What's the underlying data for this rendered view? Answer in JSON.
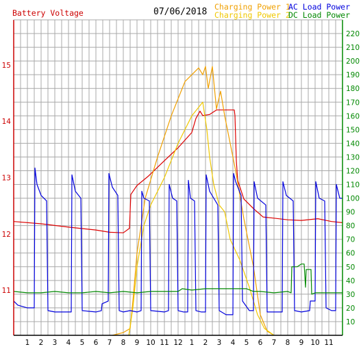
{
  "header": {
    "left_title": "Battery Voltage",
    "date": "07/06/2018",
    "legend": [
      {
        "label": "Charging Power 1",
        "color": "#f0a000"
      },
      {
        "label": "Charging Power 2",
        "color": "#f0c800"
      },
      {
        "label": "AC Load Power",
        "color": "#0000dd"
      },
      {
        "label": "DC Load Power",
        "color": "#008800"
      }
    ]
  },
  "chart_data": {
    "type": "line",
    "title": "",
    "xlabel": "",
    "ylabel_left": "Battery Voltage",
    "ylabel_right": "",
    "x_tick_labels": [
      "1",
      "2",
      "3",
      "4",
      "5",
      "6",
      "7",
      "8",
      "9",
      "10",
      "11",
      "12",
      "1",
      "2",
      "3",
      "4",
      "5",
      "6",
      "7",
      "8",
      "9",
      "10",
      "11"
    ],
    "x_range_hours": [
      0,
      24
    ],
    "y_left_ticks": [
      "11",
      "12",
      "13",
      "14",
      "15"
    ],
    "y_left_range": [
      10.2,
      15.8
    ],
    "y_right_ticks": [
      "10",
      "20",
      "30",
      "40",
      "50",
      "60",
      "70",
      "80",
      "90",
      "100",
      "110",
      "120",
      "130",
      "140",
      "150",
      "160",
      "170",
      "180",
      "190",
      "200",
      "210",
      "220"
    ],
    "y_right_range": [
      0,
      230
    ],
    "grid": true,
    "legend_position": "top",
    "axis_colors": {
      "left": "#cc0000",
      "right": "#008800",
      "x": "#000000"
    },
    "series": [
      {
        "name": "Battery Voltage",
        "axis": "left",
        "color": "#dd0000",
        "points": [
          [
            0,
            12.22
          ],
          [
            2,
            12.18
          ],
          [
            4,
            12.12
          ],
          [
            6,
            12.07
          ],
          [
            7,
            12.03
          ],
          [
            8,
            12.02
          ],
          [
            8.45,
            12.1
          ],
          [
            8.55,
            12.7
          ],
          [
            9,
            12.86
          ],
          [
            9.8,
            13.02
          ],
          [
            11,
            13.3
          ],
          [
            12,
            13.53
          ],
          [
            13,
            13.8
          ],
          [
            13.3,
            14.05
          ],
          [
            13.6,
            14.18
          ],
          [
            13.8,
            14.1
          ],
          [
            14.3,
            14.12
          ],
          [
            14.8,
            14.2
          ],
          [
            15.3,
            14.2
          ],
          [
            15.8,
            14.2
          ],
          [
            16.1,
            14.2
          ],
          [
            16.15,
            14.1
          ],
          [
            16.25,
            13.3
          ],
          [
            16.35,
            12.95
          ],
          [
            16.8,
            12.62
          ],
          [
            17.5,
            12.45
          ],
          [
            18.2,
            12.3
          ],
          [
            19,
            12.28
          ],
          [
            20,
            12.25
          ],
          [
            21,
            12.24
          ],
          [
            22.2,
            12.27
          ],
          [
            23.2,
            12.22
          ],
          [
            24,
            12.2
          ]
        ]
      },
      {
        "name": "Charging Power 1",
        "axis": "right",
        "color": "#f0a000",
        "points": [
          [
            7.2,
            0
          ],
          [
            8,
            2
          ],
          [
            8.5,
            5
          ],
          [
            8.7,
            25
          ],
          [
            9,
            60
          ],
          [
            9.6,
            100
          ],
          [
            10.5,
            130
          ],
          [
            11.5,
            160
          ],
          [
            12.5,
            185
          ],
          [
            13.5,
            195
          ],
          [
            13.8,
            190
          ],
          [
            14,
            196
          ],
          [
            14.2,
            180
          ],
          [
            14.5,
            196
          ],
          [
            14.8,
            165
          ],
          [
            15.1,
            178
          ],
          [
            15.4,
            160
          ],
          [
            16.2,
            120
          ],
          [
            16.8,
            85
          ],
          [
            17.5,
            50
          ],
          [
            18,
            15
          ],
          [
            18.5,
            3
          ],
          [
            19,
            0
          ]
        ]
      },
      {
        "name": "Charging Power 2",
        "axis": "right",
        "color": "#f0c800",
        "points": [
          [
            8.4,
            0
          ],
          [
            8.7,
            20
          ],
          [
            9,
            50
          ],
          [
            9.5,
            80
          ],
          [
            10,
            95
          ],
          [
            11,
            115
          ],
          [
            12,
            140
          ],
          [
            13,
            160
          ],
          [
            13.8,
            170
          ],
          [
            14.1,
            150
          ],
          [
            14.3,
            130
          ],
          [
            14.6,
            110
          ],
          [
            15,
            95
          ],
          [
            15.4,
            90
          ],
          [
            15.8,
            70
          ],
          [
            16.5,
            55
          ],
          [
            17.2,
            35
          ],
          [
            17.8,
            15
          ],
          [
            18.3,
            5
          ],
          [
            19,
            0
          ]
        ]
      },
      {
        "name": "AC Load Power",
        "axis": "right",
        "color": "#0000dd",
        "points": [
          [
            0,
            25
          ],
          [
            0.3,
            22
          ],
          [
            1,
            20
          ],
          [
            1.5,
            20
          ],
          [
            1.55,
            122
          ],
          [
            1.7,
            110
          ],
          [
            2,
            102
          ],
          [
            2.4,
            98
          ],
          [
            2.5,
            18
          ],
          [
            3,
            17
          ],
          [
            4,
            17
          ],
          [
            4.2,
            17
          ],
          [
            4.25,
            117
          ],
          [
            4.5,
            105
          ],
          [
            4.9,
            100
          ],
          [
            5,
            18
          ],
          [
            6,
            17
          ],
          [
            6.4,
            18
          ],
          [
            6.45,
            23
          ],
          [
            6.9,
            25
          ],
          [
            6.95,
            118
          ],
          [
            7.2,
            108
          ],
          [
            7.6,
            102
          ],
          [
            7.7,
            18
          ],
          [
            8,
            17
          ],
          [
            8.5,
            18
          ],
          [
            9,
            17
          ],
          [
            9.3,
            18
          ],
          [
            9.35,
            105
          ],
          [
            9.5,
            100
          ],
          [
            9.9,
            98
          ],
          [
            10,
            18
          ],
          [
            11,
            17
          ],
          [
            11.3,
            18
          ],
          [
            11.35,
            110
          ],
          [
            11.6,
            100
          ],
          [
            11.9,
            98
          ],
          [
            12,
            18
          ],
          [
            12.4,
            17
          ],
          [
            12.7,
            17
          ],
          [
            12.75,
            113
          ],
          [
            12.9,
            100
          ],
          [
            13.2,
            98
          ],
          [
            13.3,
            18
          ],
          [
            13.7,
            17
          ],
          [
            14,
            17
          ],
          [
            14.05,
            117
          ],
          [
            14.3,
            105
          ],
          [
            14.9,
            95
          ],
          [
            15,
            18
          ],
          [
            15.5,
            15
          ],
          [
            16,
            15
          ],
          [
            16.05,
            118
          ],
          [
            16.2,
            112
          ],
          [
            16.6,
            102
          ],
          [
            16.7,
            25
          ],
          [
            17.2,
            18
          ],
          [
            17.5,
            18
          ],
          [
            17.55,
            112
          ],
          [
            17.8,
            100
          ],
          [
            18.4,
            95
          ],
          [
            18.5,
            17
          ],
          [
            19,
            17
          ],
          [
            19.6,
            17
          ],
          [
            19.65,
            112
          ],
          [
            19.9,
            102
          ],
          [
            20.4,
            98
          ],
          [
            20.5,
            18
          ],
          [
            21,
            17
          ],
          [
            21.6,
            18
          ],
          [
            21.65,
            25
          ],
          [
            22,
            25
          ],
          [
            22.05,
            112
          ],
          [
            22.3,
            100
          ],
          [
            22.7,
            98
          ],
          [
            22.8,
            20
          ],
          [
            23.2,
            18
          ],
          [
            23.5,
            18
          ],
          [
            23.55,
            110
          ],
          [
            23.8,
            100
          ],
          [
            24,
            100
          ]
        ]
      },
      {
        "name": "DC Load Power",
        "axis": "right",
        "color": "#008800",
        "points": [
          [
            0,
            32
          ],
          [
            1,
            31
          ],
          [
            2,
            31
          ],
          [
            3,
            32
          ],
          [
            4,
            31
          ],
          [
            5,
            31
          ],
          [
            6,
            32
          ],
          [
            7,
            31
          ],
          [
            8,
            32
          ],
          [
            9,
            31
          ],
          [
            10,
            32
          ],
          [
            11,
            32
          ],
          [
            12,
            32
          ],
          [
            12.3,
            34
          ],
          [
            13,
            33
          ],
          [
            14,
            34
          ],
          [
            15,
            34
          ],
          [
            16,
            34
          ],
          [
            17,
            34
          ],
          [
            17.5,
            32
          ],
          [
            18,
            32
          ],
          [
            19,
            31
          ],
          [
            20,
            32
          ],
          [
            20.25,
            31
          ],
          [
            20.3,
            50
          ],
          [
            20.7,
            50
          ],
          [
            21,
            52
          ],
          [
            21.2,
            52
          ],
          [
            21.3,
            35
          ],
          [
            21.35,
            48
          ],
          [
            21.7,
            48
          ],
          [
            21.75,
            30
          ],
          [
            22,
            31
          ],
          [
            23,
            31
          ],
          [
            24,
            31
          ]
        ]
      }
    ]
  }
}
